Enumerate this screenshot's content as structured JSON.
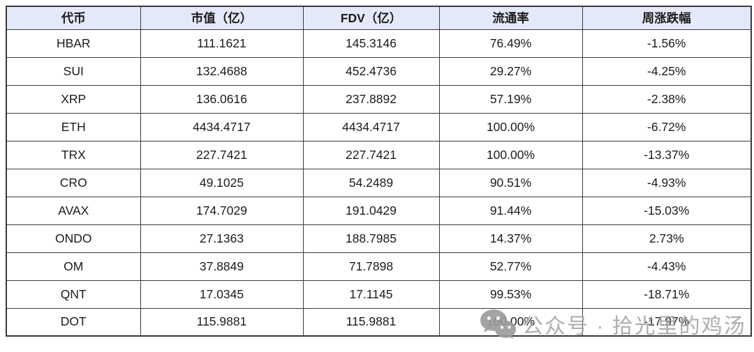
{
  "chart_data": {
    "type": "table",
    "columns": [
      "代币",
      "市值（亿）",
      "FDV（亿）",
      "流通率",
      "周涨跌幅"
    ],
    "rows": [
      [
        "HBAR",
        "111.1621",
        "145.3146",
        "76.49%",
        "-1.56%"
      ],
      [
        "SUI",
        "132.4688",
        "452.4736",
        "29.27%",
        "-4.25%"
      ],
      [
        "XRP",
        "136.0616",
        "237.8892",
        "57.19%",
        "-2.38%"
      ],
      [
        "ETH",
        "4434.4717",
        "4434.4717",
        "100.00%",
        "-6.72%"
      ],
      [
        "TRX",
        "227.7421",
        "227.7421",
        "100.00%",
        "-13.37%"
      ],
      [
        "CRO",
        "49.1025",
        "54.2489",
        "90.51%",
        "-4.93%"
      ],
      [
        "AVAX",
        "174.7029",
        "191.0429",
        "91.44%",
        "-15.03%"
      ],
      [
        "ONDO",
        "27.1363",
        "188.7985",
        "14.37%",
        "2.73%"
      ],
      [
        "OM",
        "37.8849",
        "71.7898",
        "52.77%",
        "-4.43%"
      ],
      [
        "QNT",
        "17.0345",
        "17.1145",
        "99.53%",
        "-18.71%"
      ],
      [
        "DOT",
        "115.9881",
        "115.9881",
        "100.00%",
        "-17.97%"
      ]
    ],
    "title": "",
    "legend": "none",
    "grid": "full-borders"
  },
  "watermark": {
    "icon": "wechat-icon",
    "text": "公众号 · 拾光里的鸡汤"
  },
  "colors": {
    "header_bg": "#e3e9f8",
    "border": "#3a3a3a",
    "text": "#1b1b1b",
    "watermark": "#a5a5a5",
    "background": "#ffffff"
  }
}
